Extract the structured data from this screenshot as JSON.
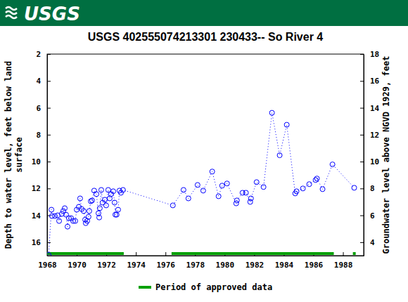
{
  "header": {
    "logo": "USGS"
  },
  "chart_data": {
    "type": "line",
    "title": "USGS 402555074213301 230433-- So River 4",
    "y_label": "Depth to water level, feet below land surface",
    "y2_label": "Groundwater level above NGVD 1929, feet",
    "xlim": [
      1968,
      1989.4
    ],
    "xticks": [
      1968,
      1970,
      1972,
      1974,
      1976,
      1978,
      1980,
      1982,
      1984,
      1986,
      1988
    ],
    "ylim": [
      17,
      2
    ],
    "yticks": [
      2,
      4,
      6,
      8,
      10,
      12,
      14,
      16
    ],
    "y2lim": [
      3,
      18
    ],
    "y2ticks": [
      4,
      6,
      8,
      10,
      12,
      14,
      16,
      18
    ],
    "x": [
      1968.1,
      1968.29,
      1968.33,
      1968.52,
      1968.71,
      1968.81,
      1969.0,
      1969.09,
      1969.19,
      1969.28,
      1969.38,
      1969.47,
      1969.62,
      1969.76,
      1969.9,
      1970.0,
      1970.14,
      1970.23,
      1970.33,
      1970.47,
      1970.57,
      1970.61,
      1970.71,
      1970.8,
      1970.85,
      1970.95,
      1971.04,
      1971.18,
      1971.33,
      1971.47,
      1971.52,
      1971.56,
      1971.66,
      1971.75,
      1971.9,
      1971.99,
      1972.13,
      1972.23,
      1972.32,
      1972.47,
      1972.56,
      1972.61,
      1972.7,
      1972.8,
      1972.89,
      1972.99,
      1973.13,
      1976.5,
      1977.22,
      1977.55,
      1978.17,
      1978.55,
      1979.16,
      1979.59,
      1979.83,
      1980.16,
      1980.78,
      1980.83,
      1981.21,
      1981.44,
      1981.73,
      1981.78,
      1982.16,
      1982.63,
      1983.2,
      1983.72,
      1984.2,
      1984.77,
      1984.86,
      1985.29,
      1985.72,
      1986.15,
      1986.24,
      1986.62,
      1987.29,
      1988.76
    ],
    "series": [
      {
        "name": "Depth to water level",
        "color": "#0000ff",
        "marker": "circle",
        "line_style": "dotted",
        "values": [
          16.95,
          13.58,
          14.05,
          14.05,
          14.0,
          14.42,
          13.89,
          13.68,
          13.47,
          13.95,
          14.84,
          14.21,
          14.21,
          14.42,
          14.42,
          13.58,
          13.37,
          12.74,
          13.53,
          13.68,
          14.32,
          14.58,
          14.42,
          14.11,
          13.68,
          12.95,
          12.89,
          12.16,
          12.42,
          13.84,
          14.16,
          13.47,
          12.11,
          13.05,
          12.84,
          13.26,
          12.11,
          12.74,
          12.42,
          12.21,
          13.05,
          13.95,
          13.95,
          13.58,
          12.16,
          12.32,
          12.11,
          13.26,
          12.11,
          12.74,
          11.74,
          12.16,
          10.74,
          12.58,
          11.79,
          11.63,
          13.11,
          12.89,
          12.32,
          12.32,
          13.0,
          12.74,
          11.53,
          11.89,
          6.37,
          9.53,
          7.26,
          12.37,
          12.21,
          12.0,
          11.68,
          11.37,
          11.26,
          12.05,
          10.21,
          11.95
        ]
      }
    ],
    "periods": {
      "name": "Period of approved data",
      "color": "#00a000",
      "ranges": [
        [
          1968.0,
          1973.18
        ],
        [
          1976.41,
          1987.38
        ],
        [
          1988.67,
          1988.86
        ]
      ]
    },
    "legend": "bottom"
  }
}
